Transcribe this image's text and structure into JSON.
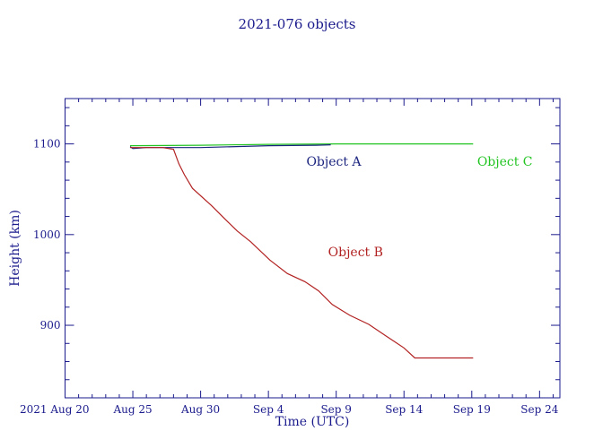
{
  "chart_data": {
    "type": "line",
    "title": "2021-076 objects",
    "xlabel": "Time (UTC)",
    "ylabel": "Height (km)",
    "x_units": "days since 2021 Aug 20",
    "xlim": [
      0,
      36.5
    ],
    "ylim": [
      820,
      1150
    ],
    "x_ticks": [
      {
        "value": 0,
        "label": "2021 Aug 20"
      },
      {
        "value": 5,
        "label": "Aug 25"
      },
      {
        "value": 10,
        "label": "Aug 30"
      },
      {
        "value": 15,
        "label": "Sep  4"
      },
      {
        "value": 20,
        "label": "Sep  9"
      },
      {
        "value": 25,
        "label": "Sep 14"
      },
      {
        "value": 30,
        "label": "Sep 19"
      },
      {
        "value": 35,
        "label": "Sep 24"
      }
    ],
    "y_ticks": [
      {
        "value": 900,
        "label": "900"
      },
      {
        "value": 1000,
        "label": "1000"
      },
      {
        "value": 1100,
        "label": "1100"
      }
    ],
    "grid": false,
    "series": [
      {
        "name": "Object C",
        "color": "#22c422",
        "x": [
          4.8,
          10,
          15,
          20,
          25,
          30.1
        ],
        "y": [
          1098,
          1098.5,
          1099.5,
          1100,
          1100,
          1100
        ]
      },
      {
        "name": "Object A",
        "color": "#1a237e",
        "x": [
          4.8,
          5.0,
          6,
          10,
          15,
          18.5,
          19.6
        ],
        "y": [
          1097,
          1095,
          1096,
          1096,
          1098,
          1098.5,
          1099
        ]
      },
      {
        "name": "Object B",
        "color": "#b22222",
        "x": [
          4.8,
          6,
          7.2,
          8.0,
          8.4,
          8.8,
          9.4,
          10.8,
          11.8,
          12.7,
          13.7,
          15.1,
          16.4,
          17.7,
          18.7,
          19.7,
          21.0,
          22.4,
          23.7,
          25.0,
          25.8,
          30.1
        ],
        "y": [
          1096,
          1096,
          1096,
          1094,
          1078,
          1066,
          1051,
          1032,
          1017,
          1004,
          992,
          972,
          957,
          948,
          938,
          923,
          911,
          901,
          888,
          875,
          864,
          864
        ]
      }
    ],
    "annotations": [
      {
        "text": "Object A",
        "x": 17.8,
        "y": 1080,
        "color": "#1a237e"
      },
      {
        "text": "Object B",
        "x": 19.4,
        "y": 980,
        "color": "#b22222"
      },
      {
        "text": "Object C",
        "x": 30.4,
        "y": 1080,
        "color": "#22c422"
      }
    ],
    "axis_color": "#1a1a8c"
  }
}
